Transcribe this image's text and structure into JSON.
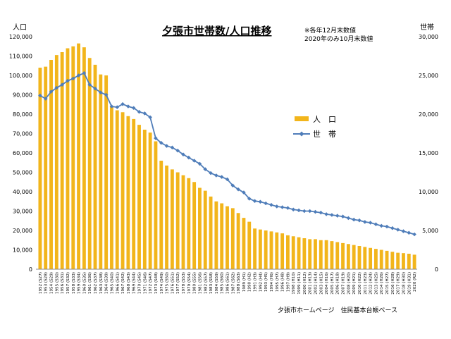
{
  "chart_data": {
    "type": "bar+line",
    "title": "夕張市世帯数/人口推移",
    "note_lines": [
      "※各年12月末数値",
      "2020年のみ10月末数値"
    ],
    "source": "夕張市ホームページ　住民基本台帳ベース",
    "left_axis": {
      "label": "人口",
      "ylim": [
        0,
        120000
      ],
      "ticks": [
        0,
        10000,
        20000,
        30000,
        40000,
        50000,
        60000,
        70000,
        80000,
        90000,
        100000,
        110000,
        120000
      ],
      "tick_labels": [
        "0",
        "10,000",
        "20,000",
        "30,000",
        "40,000",
        "50,000",
        "60,000",
        "70,000",
        "80,000",
        "90,000",
        "100,000",
        "110,000",
        "120,000"
      ]
    },
    "right_axis": {
      "label": "世帯",
      "ylim": [
        0,
        30000
      ],
      "ticks": [
        0,
        5000,
        10000,
        15000,
        20000,
        25000,
        30000
      ],
      "tick_labels": [
        "0",
        "5,000",
        "10,000",
        "15,000",
        "20,000",
        "25,000",
        "30,000"
      ]
    },
    "categories": [
      "1952 (S27)",
      "1953 (S28)",
      "1954 (S29)",
      "1955 (S30)",
      "1956 (S31)",
      "1957 (S32)",
      "1958 (S33)",
      "1959 (S34)",
      "1960 (S35)",
      "1961 (S36)",
      "1962 (S37)",
      "1963 (S38)",
      "1964 (S39)",
      "1965 (S40)",
      "1966 (S41)",
      "1967 (S42)",
      "1968 (S43)",
      "1969 (S44)",
      "1970 (S45)",
      "1971 (S46)",
      "1972 (S47)",
      "1973 (S48)",
      "1974 (S49)",
      "1975 (S50)",
      "1976 (S51)",
      "1977 (S52)",
      "1978 (S53)",
      "1979 (S54)",
      "1980 (S55)",
      "1981 (S56)",
      "1982 (S57)",
      "1983 (S58)",
      "1984 (S59)",
      "1985 (S60)",
      "1986 (S61)",
      "1987 (S62)",
      "1988 (S63)",
      "1989 (H1)",
      "1990 (H2)",
      "1991 (H3)",
      "1992 (H4)",
      "1993 (H5)",
      "1994 (H6)",
      "1995 (H7)",
      "1996 (H8)",
      "1997 (H9)",
      "1998 (H10)",
      "1999 (H11)",
      "2000 (H12)",
      "2001 (H13)",
      "2002 (H14)",
      "2003 (H15)",
      "2004 (H16)",
      "2005 (H17)",
      "2006 (H18)",
      "2007 (H19)",
      "2008 (H20)",
      "2009 (H21)",
      "2010 (H22)",
      "2011 (H23)",
      "2012 (H24)",
      "2013 (H25)",
      "2014 (H26)",
      "2015 (H27)",
      "2016 (H28)",
      "2017 (H29)",
      "2018 (H30)",
      "2019 (H31)",
      "2020 (R2)"
    ],
    "series": [
      {
        "name": "人　口",
        "axis": "left",
        "kind": "bar",
        "color": "#f2b51b",
        "values": [
          104000,
          104500,
          108000,
          110500,
          112000,
          114000,
          115000,
          116500,
          114500,
          109000,
          105500,
          100500,
          100000,
          84000,
          82000,
          81000,
          79000,
          77500,
          74500,
          72000,
          70500,
          66000,
          56000,
          53500,
          51500,
          50000,
          48500,
          47000,
          45000,
          42000,
          40500,
          37500,
          35000,
          34000,
          32500,
          31500,
          29000,
          26500,
          24500,
          21000,
          20500,
          20000,
          19500,
          19000,
          18500,
          17500,
          17000,
          16500,
          16000,
          15500,
          15500,
          15000,
          15000,
          14500,
          14000,
          13500,
          13000,
          12500,
          12000,
          11500,
          11000,
          10500,
          10000,
          9500,
          9000,
          8500,
          8300,
          8000,
          7500
        ]
      },
      {
        "name": "世　帯",
        "axis": "right",
        "kind": "line",
        "color": "#4f7db9",
        "values": [
          22400,
          22000,
          22900,
          23400,
          23800,
          24300,
          24600,
          25000,
          25300,
          23800,
          23300,
          22800,
          22500,
          21000,
          20900,
          21300,
          21000,
          20800,
          20300,
          20100,
          19600,
          16900,
          16300,
          15900,
          15700,
          15300,
          14800,
          14400,
          14000,
          13600,
          12900,
          12400,
          12100,
          11900,
          11600,
          10800,
          10300,
          9900,
          9100,
          8800,
          8700,
          8500,
          8300,
          8100,
          8000,
          7900,
          7700,
          7600,
          7500,
          7500,
          7400,
          7300,
          7100,
          7000,
          6900,
          6800,
          6600,
          6400,
          6300,
          6100,
          6000,
          5800,
          5600,
          5500,
          5300,
          5100,
          4900,
          4700,
          4500
        ]
      }
    ]
  }
}
